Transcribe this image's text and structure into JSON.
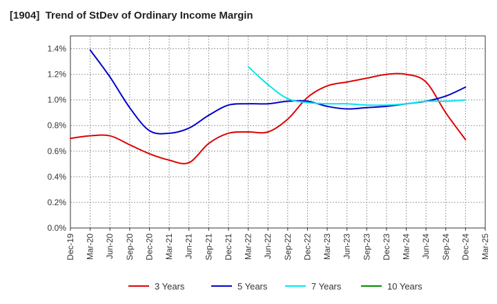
{
  "chart_data": {
    "type": "line",
    "title": "[1904]  Trend of StDev of Ordinary Income Margin",
    "x": [
      "Dec-19",
      "Mar-20",
      "Jun-20",
      "Sep-20",
      "Dec-20",
      "Mar-21",
      "Jun-21",
      "Sep-21",
      "Dec-21",
      "Mar-22",
      "Jun-22",
      "Sep-22",
      "Dec-22",
      "Mar-23",
      "Jun-23",
      "Sep-23",
      "Dec-23",
      "Mar-24",
      "Jun-24",
      "Sep-24",
      "Dec-24",
      "Mar-25"
    ],
    "xtick_labels": [
      "Dec-19",
      "Mar-20",
      "Jun-20",
      "Sep-20",
      "Dec-20",
      "Mar-21",
      "Jun-21",
      "Sep-21",
      "Dec-21",
      "Mar-22",
      "Jun-22",
      "Sep-22",
      "Dec-22",
      "Mar-23",
      "Jun-23",
      "Sep-23",
      "Dec-23",
      "Mar-24",
      "Jun-24",
      "Sep-24",
      "Dec-24",
      "Mar-25"
    ],
    "ytick_labels": [
      "0.0%",
      "0.2%",
      "0.4%",
      "0.6%",
      "0.8%",
      "1.0%",
      "1.2%",
      "1.4%"
    ],
    "ylim": [
      0,
      1.5
    ],
    "yticks": [
      0,
      0.2,
      0.4,
      0.6,
      0.8,
      1.0,
      1.2,
      1.4
    ],
    "grid": true,
    "legend_position": "bottom",
    "series": [
      {
        "name": "3 Years",
        "color": "#dd0000",
        "values": [
          0.7,
          0.72,
          0.72,
          0.65,
          0.58,
          0.53,
          0.51,
          0.66,
          0.74,
          0.75,
          0.75,
          0.85,
          1.02,
          1.11,
          1.14,
          1.17,
          1.2,
          1.2,
          1.14,
          0.9,
          0.69,
          null
        ]
      },
      {
        "name": "5 Years",
        "color": "#0000cc",
        "values": [
          null,
          1.39,
          1.18,
          0.94,
          0.76,
          0.74,
          0.78,
          0.88,
          0.96,
          0.97,
          0.97,
          0.99,
          0.99,
          0.95,
          0.93,
          0.94,
          0.95,
          0.97,
          0.99,
          1.03,
          1.1,
          null
        ]
      },
      {
        "name": "7 Years",
        "color": "#00e5ee",
        "values": [
          null,
          null,
          null,
          null,
          null,
          null,
          null,
          null,
          null,
          1.26,
          1.12,
          1.01,
          0.98,
          0.97,
          0.97,
          0.96,
          0.96,
          0.97,
          0.99,
          0.99,
          1.0,
          null
        ]
      },
      {
        "name": "10 Years",
        "color": "#008800",
        "values": [
          null,
          null,
          null,
          null,
          null,
          null,
          null,
          null,
          null,
          null,
          null,
          null,
          null,
          null,
          null,
          null,
          null,
          null,
          null,
          null,
          null,
          null
        ]
      }
    ]
  }
}
